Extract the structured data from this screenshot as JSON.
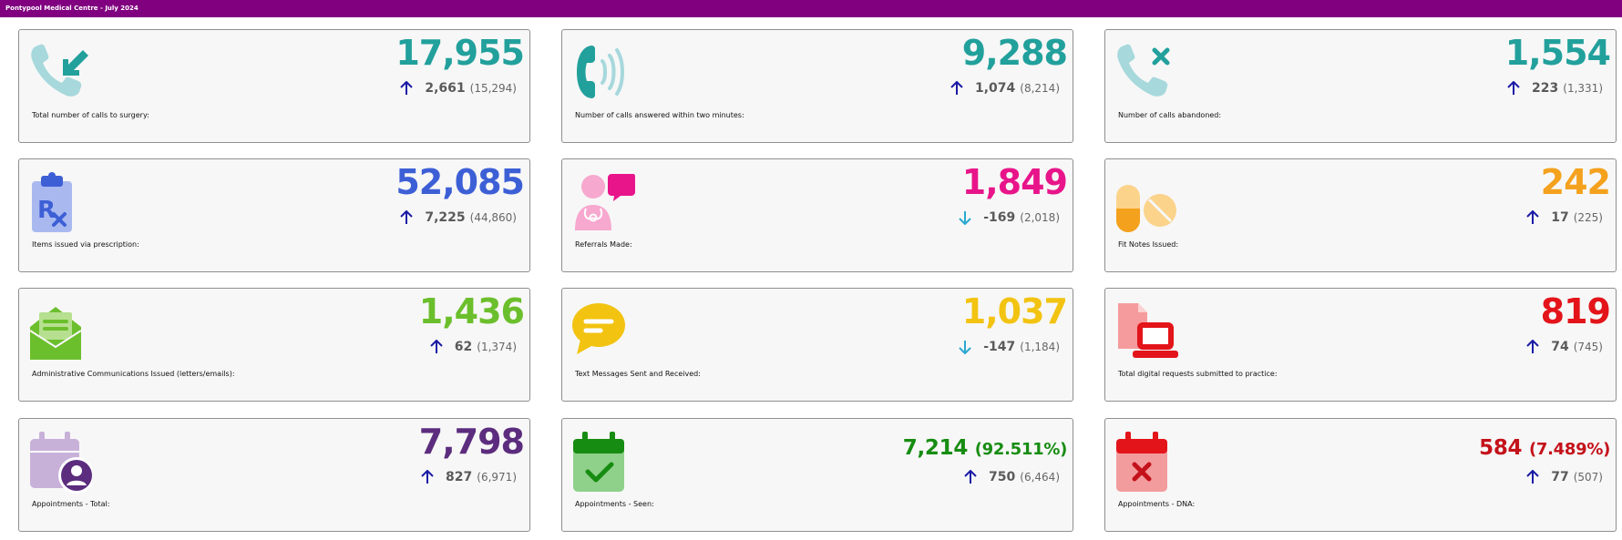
{
  "header": {
    "title": "Pontypool Medical Centre - July 2024"
  },
  "colors": {
    "header_bg": "#800080",
    "up_arrow": "#1a1aa6",
    "down_arrow": "#29a8d0"
  },
  "cards": [
    {
      "label": "Total number of calls to surgery:",
      "value": "17,955",
      "change": "2,661",
      "previous": "(15,294)",
      "trend": "up",
      "color": "#22a09c",
      "icon": "phone-incoming-icon"
    },
    {
      "label": "Number of calls answered within two minutes:",
      "value": "9,288",
      "change": "1,074",
      "previous": "(8,214)",
      "trend": "up",
      "color": "#22a09c",
      "icon": "phone-ringing-icon"
    },
    {
      "label": "Number of calls abandoned:",
      "value": "1,554",
      "change": "223",
      "previous": "(1,331)",
      "trend": "up",
      "color": "#22a09c",
      "icon": "phone-missed-icon"
    },
    {
      "label": "Items issued via prescription:",
      "value": "52,085",
      "change": "7,225",
      "previous": "(44,860)",
      "trend": "up",
      "color": "#3d5fd6",
      "icon": "prescription-clipboard-icon"
    },
    {
      "label": "Referrals Made:",
      "value": "1,849",
      "change": "-169",
      "previous": "(2,018)",
      "trend": "down",
      "color": "#e8158a",
      "icon": "doctor-chat-icon"
    },
    {
      "label": "Fit Notes Issued:",
      "value": "242",
      "change": "17",
      "previous": "(225)",
      "trend": "up",
      "color": "#f4a11d",
      "icon": "pills-icon"
    },
    {
      "label": "Administrative Communications Issued (letters/emails):",
      "value": "1,436",
      "change": "62",
      "previous": "(1,374)",
      "trend": "up",
      "color": "#6cbf2c",
      "icon": "open-envelope-icon"
    },
    {
      "label": "Text Messages Sent and Received:",
      "value": "1,037",
      "change": "-147",
      "previous": "(1,184)",
      "trend": "down",
      "color": "#f2c311",
      "icon": "chat-bubble-icon"
    },
    {
      "label": "Total digital requests submitted to practice:",
      "value": "819",
      "change": "74",
      "previous": "(745)",
      "trend": "up",
      "color": "#e3141a",
      "icon": "laptop-document-icon"
    },
    {
      "label": "Appointments - Total:",
      "value": "7,798",
      "change": "827",
      "previous": "(6,971)",
      "trend": "up",
      "color": "#5c2d7e",
      "icon": "calendar-user-icon"
    },
    {
      "label": "Appointments - Seen:",
      "value": "7,214",
      "percent": "(92.511%)",
      "change": "750",
      "previous": "(6,464)",
      "trend": "up",
      "color": "#178c12",
      "icon": "calendar-check-icon"
    },
    {
      "label": "Appointments - DNA:",
      "value": "584",
      "percent": "(7.489%)",
      "change": "77",
      "previous": "(507)",
      "trend": "up",
      "color": "#c4121a",
      "icon": "calendar-x-icon"
    }
  ]
}
